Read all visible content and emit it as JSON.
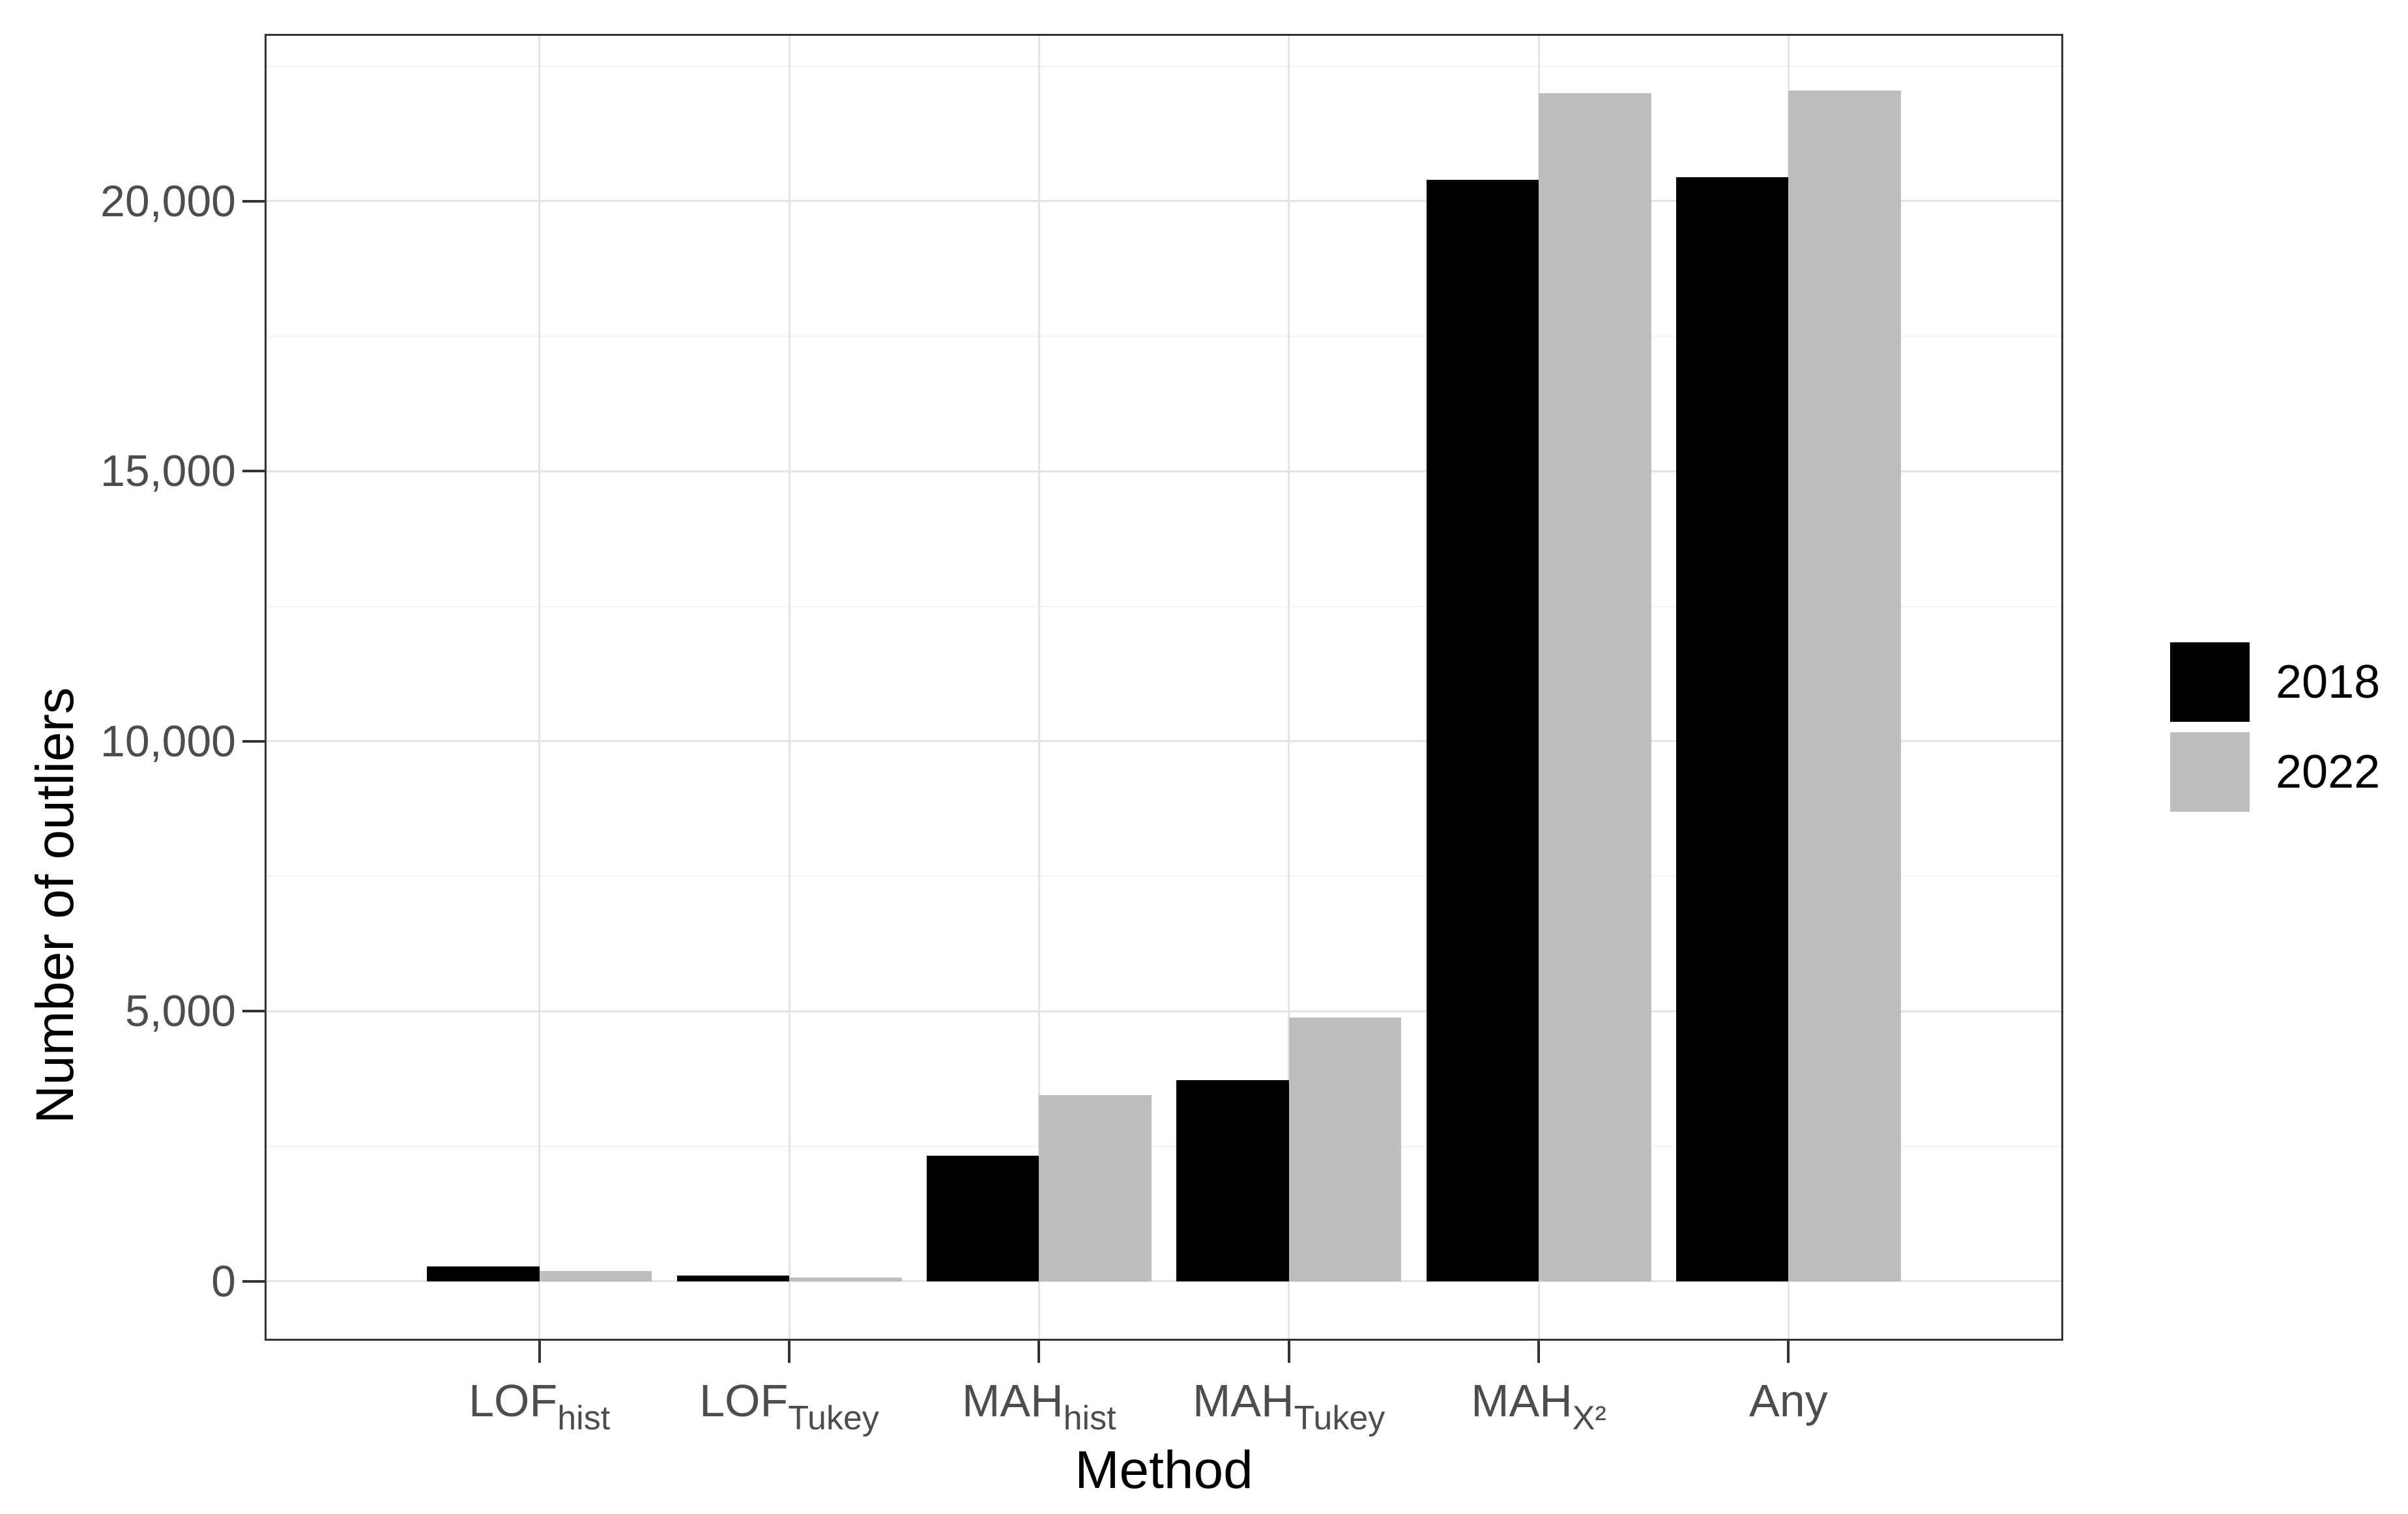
{
  "chart_data": {
    "type": "bar",
    "title": "",
    "xlabel": "Method",
    "ylabel": "Number of outliers",
    "categories": [
      {
        "base": "LOF",
        "sub": "hist"
      },
      {
        "base": "LOF",
        "sub": "Tukey"
      },
      {
        "base": "MAH",
        "sub": "hist"
      },
      {
        "base": "MAH",
        "sub": "Tukey"
      },
      {
        "base": "MAH",
        "sub": "X²"
      },
      {
        "base": "Any",
        "sub": ""
      }
    ],
    "series": [
      {
        "name": "2018",
        "color": "#000000",
        "values": [
          270,
          110,
          2330,
          3720,
          20400,
          20450
        ]
      },
      {
        "name": "2022",
        "color": "#bebebe",
        "values": [
          190,
          75,
          3450,
          4880,
          22000,
          22050
        ]
      }
    ],
    "yticks": [
      {
        "value": 0,
        "label": "0"
      },
      {
        "value": 5000,
        "label": "5,000"
      },
      {
        "value": 10000,
        "label": "10,000"
      },
      {
        "value": 15000,
        "label": "15,000"
      },
      {
        "value": 20000,
        "label": "20,000"
      }
    ],
    "y_minor_ticks": [
      2500,
      7500,
      12500,
      17500,
      22500
    ],
    "ylim": [
      -1100,
      23100
    ],
    "grid": true,
    "legend_position": "right",
    "bar_group_width": 0.9
  }
}
